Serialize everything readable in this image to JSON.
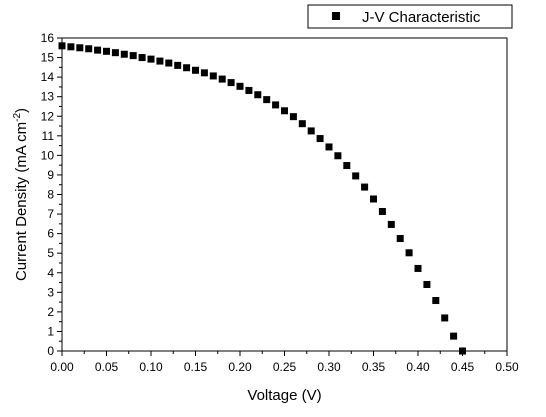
{
  "chart_data": {
    "type": "scatter",
    "xlabel": "Voltage (V)",
    "ylabel_main": "Current Density (mA cm",
    "ylabel_sup": "-2",
    "ylabel_close": ")",
    "xlim": [
      0,
      0.5
    ],
    "ylim": [
      0,
      16
    ],
    "x_ticks": [
      0.0,
      0.05,
      0.1,
      0.15,
      0.2,
      0.25,
      0.3,
      0.35,
      0.4,
      0.45,
      0.5
    ],
    "x_tick_labels": [
      "0.00",
      "0.05",
      "0.10",
      "0.15",
      "0.20",
      "0.25",
      "0.30",
      "0.35",
      "0.40",
      "0.45",
      "0.50"
    ],
    "y_ticks": [
      0,
      1,
      2,
      3,
      4,
      5,
      6,
      7,
      8,
      9,
      10,
      11,
      12,
      13,
      14,
      15,
      16
    ],
    "y_tick_labels": [
      "0",
      "1",
      "2",
      "3",
      "4",
      "5",
      "6",
      "7",
      "8",
      "9",
      "10",
      "11",
      "12",
      "13",
      "14",
      "15",
      "16"
    ],
    "grid": false,
    "legend_position": "top-right",
    "series": [
      {
        "name": "J-V Characteristic",
        "marker": "square",
        "color": "#000000",
        "x": [
          0.0,
          0.01,
          0.02,
          0.03,
          0.04,
          0.05,
          0.06,
          0.07,
          0.08,
          0.09,
          0.1,
          0.11,
          0.12,
          0.13,
          0.14,
          0.15,
          0.16,
          0.17,
          0.18,
          0.19,
          0.2,
          0.21,
          0.22,
          0.23,
          0.24,
          0.25,
          0.26,
          0.27,
          0.28,
          0.29,
          0.3,
          0.31,
          0.32,
          0.33,
          0.34,
          0.35,
          0.36,
          0.37,
          0.38,
          0.39,
          0.4,
          0.41,
          0.42,
          0.43,
          0.44,
          0.45
        ],
        "y": [
          15.6,
          15.55,
          15.5,
          15.45,
          15.38,
          15.32,
          15.25,
          15.17,
          15.1,
          15.0,
          14.92,
          14.82,
          14.72,
          14.6,
          14.48,
          14.35,
          14.22,
          14.06,
          13.9,
          13.72,
          13.53,
          13.32,
          13.1,
          12.85,
          12.58,
          12.28,
          11.98,
          11.62,
          11.25,
          10.86,
          10.43,
          9.98,
          9.48,
          8.95,
          8.38,
          7.77,
          7.13,
          6.47,
          5.75,
          5.02,
          4.22,
          3.4,
          2.58,
          1.69,
          0.76,
          0.0
        ]
      }
    ]
  }
}
